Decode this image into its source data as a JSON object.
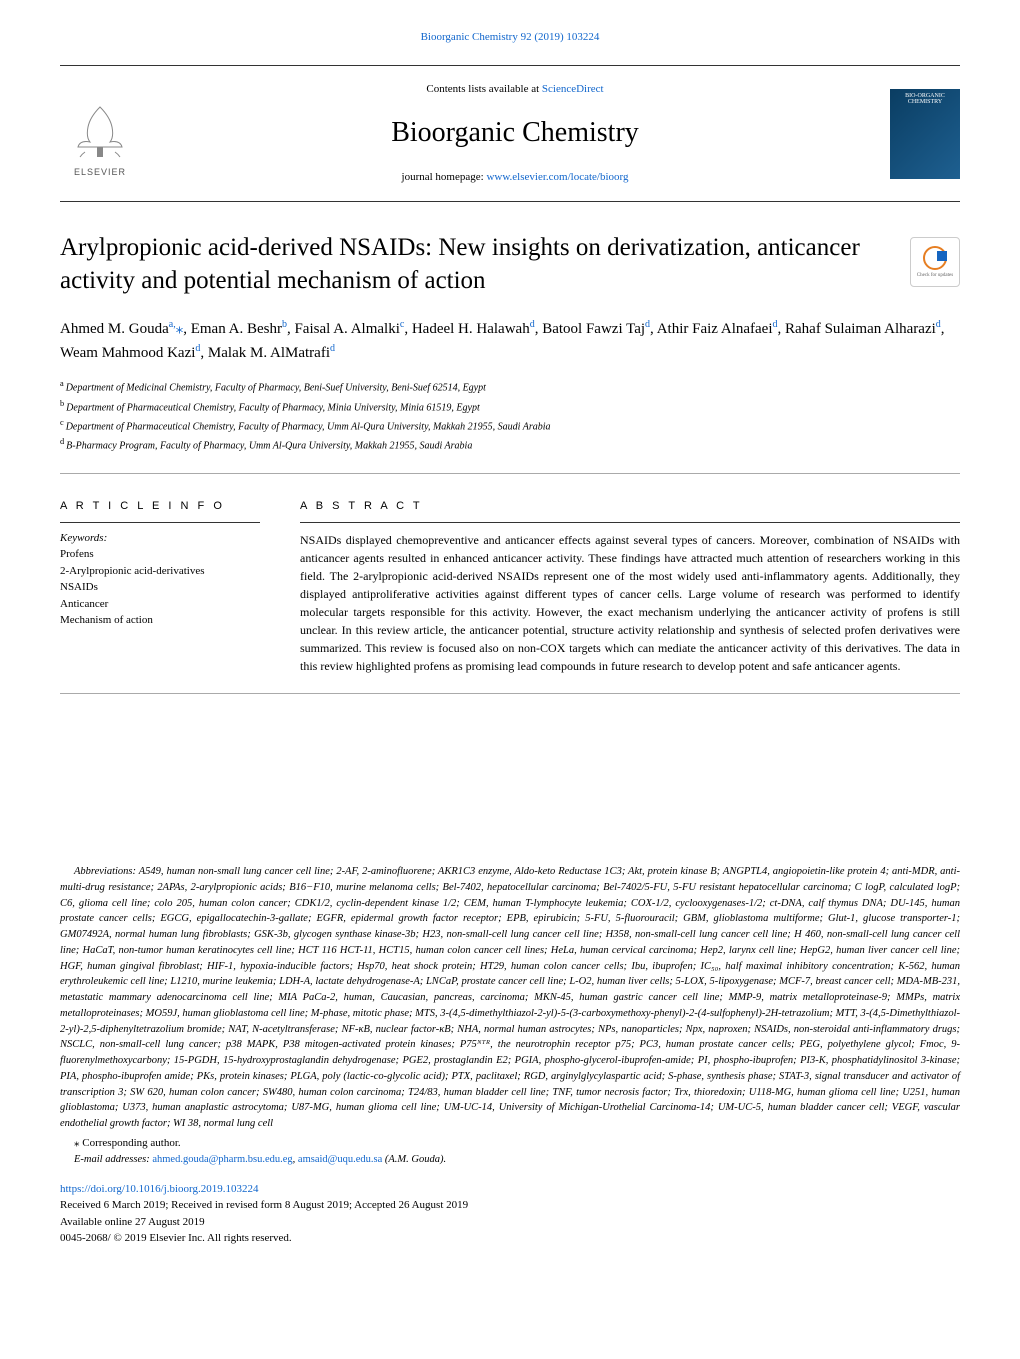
{
  "top_citation": "Bioorganic Chemistry 92 (2019) 103224",
  "masthead": {
    "contents_prefix": "Contents lists available at ",
    "sciencedirect": "ScienceDirect",
    "journal_name": "Bioorganic Chemistry",
    "homepage_prefix": "journal homepage: ",
    "homepage_url": "www.elsevier.com/locate/bioorg",
    "publisher": "ELSEVIER",
    "cover_line1": "BIO-ORGANIC",
    "cover_line2": "CHEMISTRY"
  },
  "updates_badge": "Check for updates",
  "title": "Arylpropionic acid-derived NSAIDs: New insights on derivatization, anticancer activity and potential mechanism of action",
  "authors_html": "Ahmed M. Gouda<sup>a,</sup><span class='corr-star'>⁎</span>, Eman A. Beshr<sup>b</sup>, Faisal A. Almalki<sup>c</sup>, Hadeel H. Halawah<sup>d</sup>, Batool Fawzi Taj<sup>d</sup>, Athir Faiz Alnafaei<sup>d</sup>, Rahaf Sulaiman Alharazi<sup>d</sup>, Weam Mahmood Kazi<sup>d</sup>, Malak M. AlMatrafi<sup>d</sup>",
  "affiliations": {
    "a": "Department of Medicinal Chemistry, Faculty of Pharmacy, Beni-Suef University, Beni-Suef 62514, Egypt",
    "b": "Department of Pharmaceutical Chemistry, Faculty of Pharmacy, Minia University, Minia 61519, Egypt",
    "c": "Department of Pharmaceutical Chemistry, Faculty of Pharmacy, Umm Al-Qura University, Makkah 21955, Saudi Arabia",
    "d": "B-Pharmacy Program, Faculty of Pharmacy, Umm Al-Qura University, Makkah 21955, Saudi Arabia"
  },
  "info": {
    "head": "A R T I C L E  I N F O",
    "keywords_label": "Keywords:",
    "keywords": [
      "Profens",
      "2-Arylpropionic acid-derivatives",
      "NSAIDs",
      "Anticancer",
      "Mechanism of action"
    ]
  },
  "abstract": {
    "head": "A B S T R A C T",
    "text": "NSAIDs displayed chemopreventive and anticancer effects against several types of cancers. Moreover, combination of NSAIDs with anticancer agents resulted in enhanced anticancer activity. These findings have attracted much attention of researchers working in this field. The 2-arylpropionic acid-derived NSAIDs represent one of the most widely used anti-inflammatory agents. Additionally, they displayed antiproliferative activities against different types of cancer cells. Large volume of research was performed to identify molecular targets responsible for this activity. However, the exact mechanism underlying the anticancer activity of profens is still unclear. In this review article, the anticancer potential, structure activity relationship and synthesis of selected profen derivatives were summarized. This review is focused also on non-COX targets which can mediate the anticancer activity of this derivatives. The data in this review highlighted profens as promising lead compounds in future research to develop potent and safe anticancer agents."
  },
  "abbreviations": {
    "label": "Abbreviations:",
    "text": " A549, human non-small lung cancer cell line; 2-AF, 2-aminofluorene; AKR1C3 enzyme, Aldo-keto Reductase 1C3; Akt, protein kinase B; ANGPTL4, angiopoietin-like protein 4; anti-MDR, anti-multi-drug resistance; 2APAs, 2-arylpropionic acids; B16−F10, murine melanoma cells; Bel-7402, hepatocellular carcinoma; Bel-7402/5-FU, 5-FU resistant hepatocellular carcinoma; C logP, calculated logP; C6, glioma cell line; colo 205, human colon cancer; CDK1/2, cyclin-dependent kinase 1/2; CEM, human T-lymphocyte leukemia; COX-1/2, cyclooxygenases-1/2; ct-DNA, calf thymus DNA; DU-145, human prostate cancer cells; EGCG, epigallocatechin-3-gallate; EGFR, epidermal growth factor receptor; EPB, epirubicin; 5-FU, 5-fluorouracil; GBM, glioblastoma multiforme; Glut-1, glucose transporter-1; GM07492A, normal human lung fibroblasts; GSK-3b, glycogen synthase kinase-3b; H23, non-small-cell lung cancer cell line; H358, non-small-cell lung cancer cell line; H 460, non-small-cell lung cancer cell line; HaCaT, non-tumor human keratinocytes cell line; HCT 116 HCT-11, HCT15, human colon cancer cell lines; HeLa, human cervical carcinoma; Hep2, larynx cell line; HepG2, human liver cancer cell line; HGF, human gingival fibroblast; HIF-1, hypoxia-inducible factors; Hsp70, heat shock protein; HT29, human colon cancer cells; Ibu, ibuprofen; IC₅₀, half maximal inhibitory concentration; K-562, human erythroleukemic cell line; L1210, murine leukemia; LDH-A, lactate dehydrogenase-A; LNCaP, prostate cancer cell line; L-O2, human liver cells; 5-LOX, 5-lipoxygenase; MCF-7, breast cancer cell; MDA-MB-231, metastatic mammary adenocarcinoma cell line; MIA PaCa-2, human, Caucasian, pancreas, carcinoma; MKN-45, human gastric cancer cell line; MMP-9, matrix metalloproteinase-9; MMPs, matrix metalloproteinases; MO59J, human glioblastoma cell line; M-phase, mitotic phase; MTS, 3-(4,5-dimethylthiazol-2-yl)-5-(3-carboxymethoxy-phenyl)-2-(4-sulfophenyl)-2H-tetrazolium; MTT, 3-(4,5-Dimethylthiazol-2-yl)-2,5-diphenyltetrazolium bromide; NAT, N-acetyltransferase; NF-κB, nuclear factor-κB; NHA, normal human astrocytes; NPs, nanoparticles; Npx, naproxen; NSAIDs, non-steroidal anti-inflammatory drugs; NSCLC, non-small-cell lung cancer; p38 MAPK, P38 mitogen-activated protein kinases; P75ᴺᵀᴿ, the neurotrophin receptor p75; PC3, human prostate cancer cells; PEG, polyethylene glycol; Fmoc, 9-fluorenylmethoxycarbony; 15-PGDH, 15-hydroxyprostaglandin dehydrogenase; PGE2, prostaglandin E2; PGIA, phospho-glycerol-ibuprofen-amide; PI, phospho-ibuprofen; PI3-K, phosphatidylinositol 3-kinase; PIA, phospho-ibuprofen amide; PKs, protein kinases; PLGA, poly (lactic-co-glycolic acid); PTX, paclitaxel; RGD, arginylglycylaspartic acid; S-phase, synthesis phase; STAT-3, signal transducer and activator of transcription 3; SW 620, human colon cancer; SW480, human colon carcinoma; T24/83, human bladder cell line; TNF, tumor necrosis factor; Trx, thioredoxin; U118-MG, human glioma cell line; U251, human glioblastoma; U373, human anaplastic astrocytoma; U87-MG, human glioma cell line; UM-UC-14, University of Michigan-Urothelial Carcinoma-14; UM-UC-5, human bladder cancer cell; VEGF, vascular endothelial growth factor; WI 38, normal lung cell"
  },
  "correspondence": {
    "note": "⁎ Corresponding author.",
    "email_label": "E-mail addresses:",
    "email1": "ahmed.gouda@pharm.bsu.edu.eg",
    "email2": "amsaid@uqu.edu.sa",
    "email_name": " (A.M. Gouda)."
  },
  "footer": {
    "doi": "https://doi.org/10.1016/j.bioorg.2019.103224",
    "received": "Received 6 March 2019; Received in revised form 8 August 2019; Accepted 26 August 2019",
    "online": "Available online 27 August 2019",
    "copyright": "0045-2068/ © 2019 Elsevier Inc. All rights reserved."
  }
}
